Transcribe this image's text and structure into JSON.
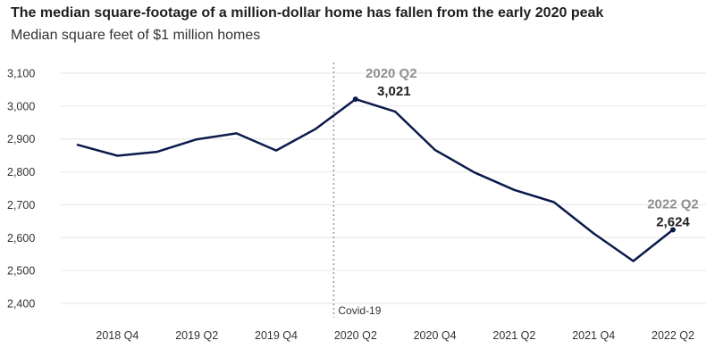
{
  "chart_data": {
    "type": "line",
    "title": "The median square-footage of a million-dollar home has fallen from the early 2020 peak",
    "subtitle": "Median square feet of $1 million homes",
    "xlabel": "",
    "ylabel": "",
    "ylim": [
      2400,
      3100
    ],
    "yticks": [
      2400,
      2500,
      2600,
      2700,
      2800,
      2900,
      3000,
      3100
    ],
    "ytick_labels": [
      "2,400",
      "2,500",
      "2,600",
      "2,700",
      "2,800",
      "2,900",
      "3,000",
      "3,100"
    ],
    "categories": [
      "2018 Q3",
      "2018 Q4",
      "2019 Q1",
      "2019 Q2",
      "2019 Q3",
      "2019 Q4",
      "2020 Q1",
      "2020 Q2",
      "2020 Q3",
      "2020 Q4",
      "2021 Q1",
      "2021 Q2",
      "2021 Q3",
      "2021 Q4",
      "2022 Q1",
      "2022 Q2"
    ],
    "xtick_labels": [
      "2018 Q4",
      "2019 Q2",
      "2019 Q4",
      "2020 Q2",
      "2020 Q4",
      "2021 Q2",
      "2021 Q4",
      "2022 Q2"
    ],
    "grid": true,
    "series": [
      {
        "color": "#0c1a4b",
        "values": [
          2882,
          2849,
          2861,
          2899,
          2917,
          2865,
          2931,
          3021,
          2983,
          2867,
          2798,
          2745,
          2708,
          2613,
          2529,
          2624
        ]
      }
    ],
    "annotations": [
      {
        "category": "2020 Q2",
        "period_label": "2020 Q2",
        "value_label": "3,021"
      },
      {
        "category": "2022 Q2",
        "period_label": "2022 Q2",
        "value_label": "2,624"
      }
    ],
    "event": {
      "label": "Covid-19",
      "position": "between 2020 Q1 and 2020 Q2"
    }
  }
}
